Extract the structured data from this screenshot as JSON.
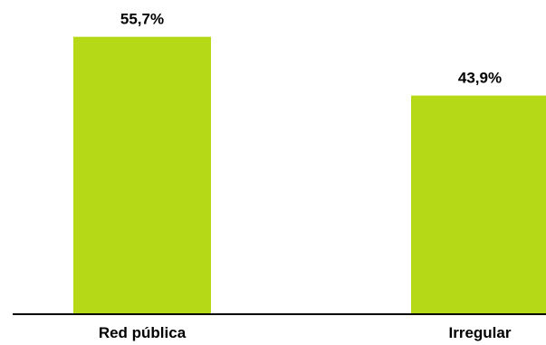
{
  "chart_data": {
    "type": "bar",
    "categories": [
      "Red pública",
      "Irregular"
    ],
    "values": [
      55.7,
      43.9
    ],
    "value_labels": [
      "55,7%",
      "43,9%"
    ],
    "title": "",
    "xlabel": "",
    "ylabel": "",
    "ylim": [
      0,
      60
    ],
    "grid": false,
    "legend": "none",
    "bar_color": "#b5d916",
    "axis_color": "#000000"
  }
}
